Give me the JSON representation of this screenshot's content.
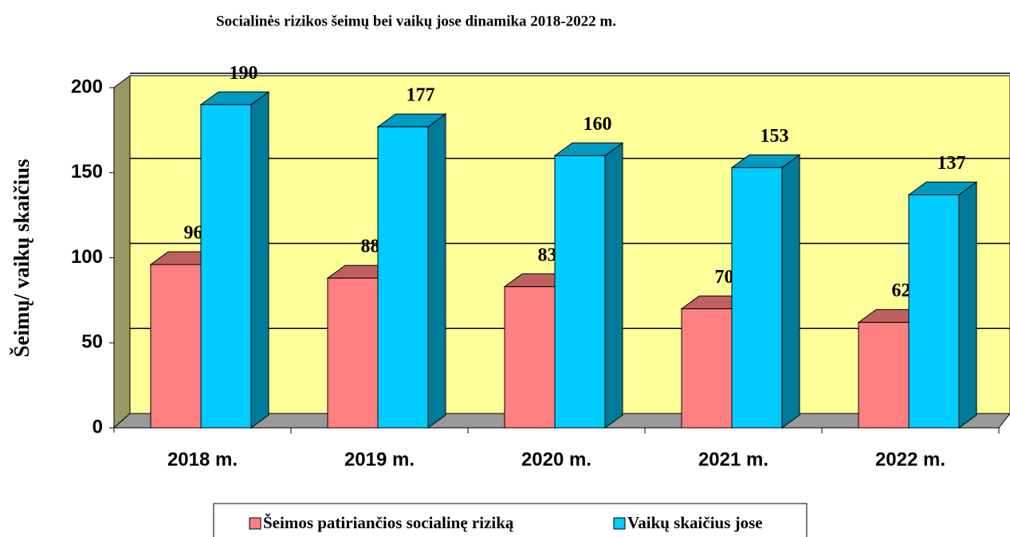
{
  "chart_data": {
    "type": "bar",
    "title": "Socialinės rizikos šeimų bei vaikų jose dinamika 2018-2022 m.",
    "y_label": "Šeimų/ vaikų skaičius",
    "categories": [
      "2018 m.",
      "2019 m.",
      "2020 m.",
      "2021 m.",
      "2022 m."
    ],
    "series": [
      {
        "name": "Šeimos patiriančios socialinę riziką",
        "color": "#ff8080",
        "values": [
          96,
          88,
          83,
          70,
          62
        ]
      },
      {
        "name": "Vaikų skaičius jose",
        "color": "#00ccff",
        "values": [
          190,
          177,
          160,
          153,
          137
        ]
      }
    ],
    "ylim": [
      0,
      200
    ],
    "yticks": [
      0,
      50,
      100,
      150,
      200
    ],
    "grid": true,
    "legend": "bottom"
  }
}
